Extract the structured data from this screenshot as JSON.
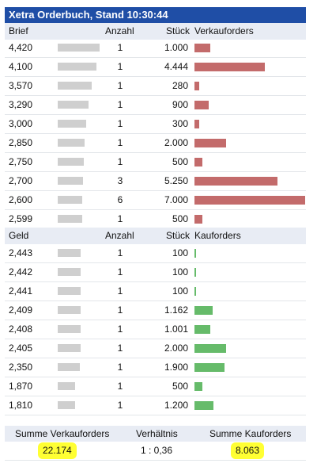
{
  "title": "Xetra Orderbuch, Stand 10:30:44",
  "colors": {
    "title_bg": "#1f4ea6",
    "sell_bar": "#c36b6b",
    "buy_bar": "#66bb6a",
    "highlight": "#ffff33"
  },
  "sell": {
    "headers": {
      "price": "Brief",
      "count": "Anzahl",
      "qty": "Stück",
      "bar": "Verkauforders"
    },
    "rows": [
      {
        "price": "4,420",
        "count": "1",
        "qty": "1.000",
        "qty_value": 1000
      },
      {
        "price": "4,100",
        "count": "1",
        "qty": "4.444",
        "qty_value": 4444
      },
      {
        "price": "3,570",
        "count": "1",
        "qty": "280",
        "qty_value": 280
      },
      {
        "price": "3,290",
        "count": "1",
        "qty": "900",
        "qty_value": 900
      },
      {
        "price": "3,000",
        "count": "1",
        "qty": "300",
        "qty_value": 300
      },
      {
        "price": "2,850",
        "count": "1",
        "qty": "2.000",
        "qty_value": 2000
      },
      {
        "price": "2,750",
        "count": "1",
        "qty": "500",
        "qty_value": 500
      },
      {
        "price": "2,700",
        "count": "3",
        "qty": "5.250",
        "qty_value": 5250
      },
      {
        "price": "2,600",
        "count": "6",
        "qty": "7.000",
        "qty_value": 7000
      },
      {
        "price": "2,599",
        "count": "1",
        "qty": "500",
        "qty_value": 500
      }
    ]
  },
  "buy": {
    "headers": {
      "price": "Geld",
      "count": "Anzahl",
      "qty": "Stück",
      "bar": "Kauforders"
    },
    "rows": [
      {
        "price": "2,443",
        "count": "1",
        "qty": "100",
        "qty_value": 100
      },
      {
        "price": "2,442",
        "count": "1",
        "qty": "100",
        "qty_value": 100
      },
      {
        "price": "2,441",
        "count": "1",
        "qty": "100",
        "qty_value": 100
      },
      {
        "price": "2,409",
        "count": "1",
        "qty": "1.162",
        "qty_value": 1162
      },
      {
        "price": "2,408",
        "count": "1",
        "qty": "1.001",
        "qty_value": 1001
      },
      {
        "price": "2,405",
        "count": "1",
        "qty": "2.000",
        "qty_value": 2000
      },
      {
        "price": "2,350",
        "count": "1",
        "qty": "1.900",
        "qty_value": 1900
      },
      {
        "price": "1,870",
        "count": "1",
        "qty": "500",
        "qty_value": 500
      },
      {
        "price": "1,810",
        "count": "1",
        "qty": "1.200",
        "qty_value": 1200
      }
    ]
  },
  "summary": {
    "sell_label": "Summe Verkauforders",
    "ratio_label": "Verhältnis",
    "buy_label": "Summe Kauforders",
    "sell_total": "22.174",
    "ratio": "1 : 0,36",
    "buy_total": "8.063"
  }
}
